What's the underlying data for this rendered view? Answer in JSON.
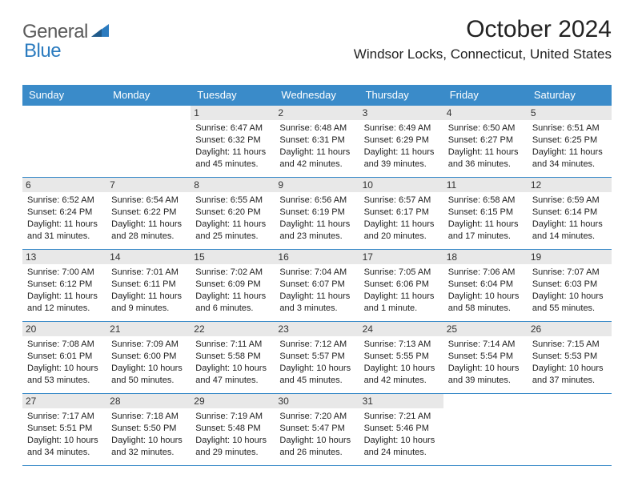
{
  "logo": {
    "part1": "General",
    "part2": "Blue"
  },
  "title": "October 2024",
  "location": "Windsor Locks, Connecticut, United States",
  "colors": {
    "header_bg": "#3a8bc9",
    "header_text": "#ffffff",
    "daynum_bg": "#e8e8e8",
    "border": "#3a8bc9",
    "logo_gray": "#5a5a5a",
    "logo_blue": "#2b7bbf"
  },
  "weekdays": [
    "Sunday",
    "Monday",
    "Tuesday",
    "Wednesday",
    "Thursday",
    "Friday",
    "Saturday"
  ],
  "weeks": [
    [
      {
        "n": "",
        "sr": "",
        "ss": "",
        "dl": ""
      },
      {
        "n": "",
        "sr": "",
        "ss": "",
        "dl": ""
      },
      {
        "n": "1",
        "sr": "Sunrise: 6:47 AM",
        "ss": "Sunset: 6:32 PM",
        "dl": "Daylight: 11 hours and 45 minutes."
      },
      {
        "n": "2",
        "sr": "Sunrise: 6:48 AM",
        "ss": "Sunset: 6:31 PM",
        "dl": "Daylight: 11 hours and 42 minutes."
      },
      {
        "n": "3",
        "sr": "Sunrise: 6:49 AM",
        "ss": "Sunset: 6:29 PM",
        "dl": "Daylight: 11 hours and 39 minutes."
      },
      {
        "n": "4",
        "sr": "Sunrise: 6:50 AM",
        "ss": "Sunset: 6:27 PM",
        "dl": "Daylight: 11 hours and 36 minutes."
      },
      {
        "n": "5",
        "sr": "Sunrise: 6:51 AM",
        "ss": "Sunset: 6:25 PM",
        "dl": "Daylight: 11 hours and 34 minutes."
      }
    ],
    [
      {
        "n": "6",
        "sr": "Sunrise: 6:52 AM",
        "ss": "Sunset: 6:24 PM",
        "dl": "Daylight: 11 hours and 31 minutes."
      },
      {
        "n": "7",
        "sr": "Sunrise: 6:54 AM",
        "ss": "Sunset: 6:22 PM",
        "dl": "Daylight: 11 hours and 28 minutes."
      },
      {
        "n": "8",
        "sr": "Sunrise: 6:55 AM",
        "ss": "Sunset: 6:20 PM",
        "dl": "Daylight: 11 hours and 25 minutes."
      },
      {
        "n": "9",
        "sr": "Sunrise: 6:56 AM",
        "ss": "Sunset: 6:19 PM",
        "dl": "Daylight: 11 hours and 23 minutes."
      },
      {
        "n": "10",
        "sr": "Sunrise: 6:57 AM",
        "ss": "Sunset: 6:17 PM",
        "dl": "Daylight: 11 hours and 20 minutes."
      },
      {
        "n": "11",
        "sr": "Sunrise: 6:58 AM",
        "ss": "Sunset: 6:15 PM",
        "dl": "Daylight: 11 hours and 17 minutes."
      },
      {
        "n": "12",
        "sr": "Sunrise: 6:59 AM",
        "ss": "Sunset: 6:14 PM",
        "dl": "Daylight: 11 hours and 14 minutes."
      }
    ],
    [
      {
        "n": "13",
        "sr": "Sunrise: 7:00 AM",
        "ss": "Sunset: 6:12 PM",
        "dl": "Daylight: 11 hours and 12 minutes."
      },
      {
        "n": "14",
        "sr": "Sunrise: 7:01 AM",
        "ss": "Sunset: 6:11 PM",
        "dl": "Daylight: 11 hours and 9 minutes."
      },
      {
        "n": "15",
        "sr": "Sunrise: 7:02 AM",
        "ss": "Sunset: 6:09 PM",
        "dl": "Daylight: 11 hours and 6 minutes."
      },
      {
        "n": "16",
        "sr": "Sunrise: 7:04 AM",
        "ss": "Sunset: 6:07 PM",
        "dl": "Daylight: 11 hours and 3 minutes."
      },
      {
        "n": "17",
        "sr": "Sunrise: 7:05 AM",
        "ss": "Sunset: 6:06 PM",
        "dl": "Daylight: 11 hours and 1 minute."
      },
      {
        "n": "18",
        "sr": "Sunrise: 7:06 AM",
        "ss": "Sunset: 6:04 PM",
        "dl": "Daylight: 10 hours and 58 minutes."
      },
      {
        "n": "19",
        "sr": "Sunrise: 7:07 AM",
        "ss": "Sunset: 6:03 PM",
        "dl": "Daylight: 10 hours and 55 minutes."
      }
    ],
    [
      {
        "n": "20",
        "sr": "Sunrise: 7:08 AM",
        "ss": "Sunset: 6:01 PM",
        "dl": "Daylight: 10 hours and 53 minutes."
      },
      {
        "n": "21",
        "sr": "Sunrise: 7:09 AM",
        "ss": "Sunset: 6:00 PM",
        "dl": "Daylight: 10 hours and 50 minutes."
      },
      {
        "n": "22",
        "sr": "Sunrise: 7:11 AM",
        "ss": "Sunset: 5:58 PM",
        "dl": "Daylight: 10 hours and 47 minutes."
      },
      {
        "n": "23",
        "sr": "Sunrise: 7:12 AM",
        "ss": "Sunset: 5:57 PM",
        "dl": "Daylight: 10 hours and 45 minutes."
      },
      {
        "n": "24",
        "sr": "Sunrise: 7:13 AM",
        "ss": "Sunset: 5:55 PM",
        "dl": "Daylight: 10 hours and 42 minutes."
      },
      {
        "n": "25",
        "sr": "Sunrise: 7:14 AM",
        "ss": "Sunset: 5:54 PM",
        "dl": "Daylight: 10 hours and 39 minutes."
      },
      {
        "n": "26",
        "sr": "Sunrise: 7:15 AM",
        "ss": "Sunset: 5:53 PM",
        "dl": "Daylight: 10 hours and 37 minutes."
      }
    ],
    [
      {
        "n": "27",
        "sr": "Sunrise: 7:17 AM",
        "ss": "Sunset: 5:51 PM",
        "dl": "Daylight: 10 hours and 34 minutes."
      },
      {
        "n": "28",
        "sr": "Sunrise: 7:18 AM",
        "ss": "Sunset: 5:50 PM",
        "dl": "Daylight: 10 hours and 32 minutes."
      },
      {
        "n": "29",
        "sr": "Sunrise: 7:19 AM",
        "ss": "Sunset: 5:48 PM",
        "dl": "Daylight: 10 hours and 29 minutes."
      },
      {
        "n": "30",
        "sr": "Sunrise: 7:20 AM",
        "ss": "Sunset: 5:47 PM",
        "dl": "Daylight: 10 hours and 26 minutes."
      },
      {
        "n": "31",
        "sr": "Sunrise: 7:21 AM",
        "ss": "Sunset: 5:46 PM",
        "dl": "Daylight: 10 hours and 24 minutes."
      },
      {
        "n": "",
        "sr": "",
        "ss": "",
        "dl": ""
      },
      {
        "n": "",
        "sr": "",
        "ss": "",
        "dl": ""
      }
    ]
  ]
}
